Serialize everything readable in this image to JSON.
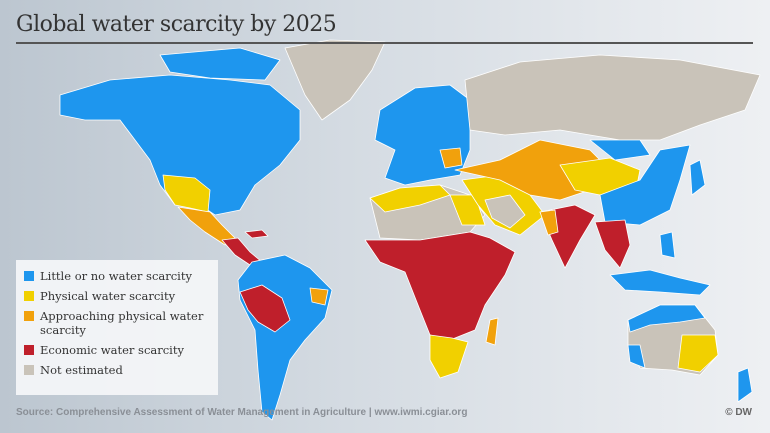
{
  "title": "Global water scarcity by 2025",
  "legend": [
    {
      "label": "Little or no water scarcity",
      "color": "#1e96ee"
    },
    {
      "label": "Physical water scarcity",
      "color": "#f1d000"
    },
    {
      "label": "Approaching physical water scarcity",
      "color": "#f1a10c"
    },
    {
      "label": "Economic water scarcity",
      "color": "#bf1f2b"
    },
    {
      "label": "Not estimated",
      "color": "#c9c3b9"
    }
  ],
  "source": "Source: Comprehensive Assessment of Water Management in Agriculture | www.iwmi.cgiar.org",
  "credit": "© DW"
}
